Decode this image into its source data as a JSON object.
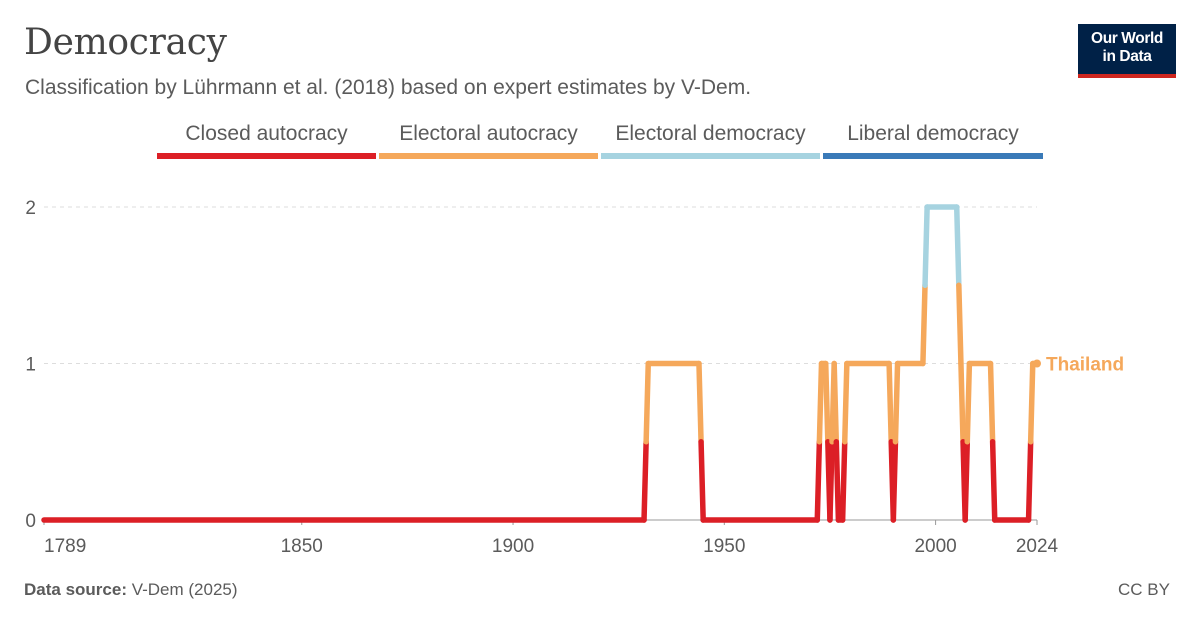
{
  "header": {
    "title": "Democracy",
    "subtitle": "Classification by Lührmann et al. (2018) based on expert estimates by V-Dem."
  },
  "logo": {
    "line1": "Our World",
    "line2": "in Data"
  },
  "footer": {
    "source_label": "Data source:",
    "source_value": "V-Dem (2025)",
    "license": "CC BY"
  },
  "colors": {
    "closed_autocracy": "#dc1f26",
    "electoral_autocracy": "#f5a85b",
    "electoral_democracy": "#a6d3e0",
    "liberal_democracy": "#3a7ab8",
    "logo_bg": "#002147",
    "logo_bar": "#ce261e"
  },
  "chart_data": {
    "type": "line",
    "title": "Democracy",
    "subtitle": "Classification by Lührmann et al. (2018) based on expert estimates by V-Dem.",
    "ylim": [
      0,
      2
    ],
    "yticks": [
      0,
      1,
      2
    ],
    "xlim": [
      1789,
      2024
    ],
    "xticks": [
      1789,
      1850,
      1900,
      1950,
      2000,
      2024
    ],
    "grid": "horizontal dashed",
    "legend_placement": "top",
    "legend": [
      {
        "label": "Closed autocracy",
        "value": 0,
        "color": "#dc1f26"
      },
      {
        "label": "Electoral autocracy",
        "value": 1,
        "color": "#f5a85b"
      },
      {
        "label": "Electoral democracy",
        "value": 2,
        "color": "#a6d3e0"
      },
      {
        "label": "Liberal democracy",
        "value": 3,
        "color": "#3a7ab8"
      }
    ],
    "series": [
      {
        "name": "Thailand",
        "color": "#f5a85b",
        "points": [
          [
            1789,
            0
          ],
          [
            1931,
            0
          ],
          [
            1932,
            1
          ],
          [
            1944,
            1
          ],
          [
            1945,
            0
          ],
          [
            1972,
            0
          ],
          [
            1973,
            1
          ],
          [
            1974,
            1
          ],
          [
            1975,
            0
          ],
          [
            1976,
            1
          ],
          [
            1977,
            0
          ],
          [
            1978,
            0
          ],
          [
            1979,
            1
          ],
          [
            1989,
            1
          ],
          [
            1990,
            0
          ],
          [
            1991,
            1
          ],
          [
            1997,
            1
          ],
          [
            1998,
            2
          ],
          [
            2005,
            2
          ],
          [
            2006,
            1
          ],
          [
            2007,
            0
          ],
          [
            2008,
            1
          ],
          [
            2013,
            1
          ],
          [
            2014,
            0
          ],
          [
            2022,
            0
          ],
          [
            2023,
            1
          ],
          [
            2024,
            1
          ]
        ]
      }
    ]
  }
}
